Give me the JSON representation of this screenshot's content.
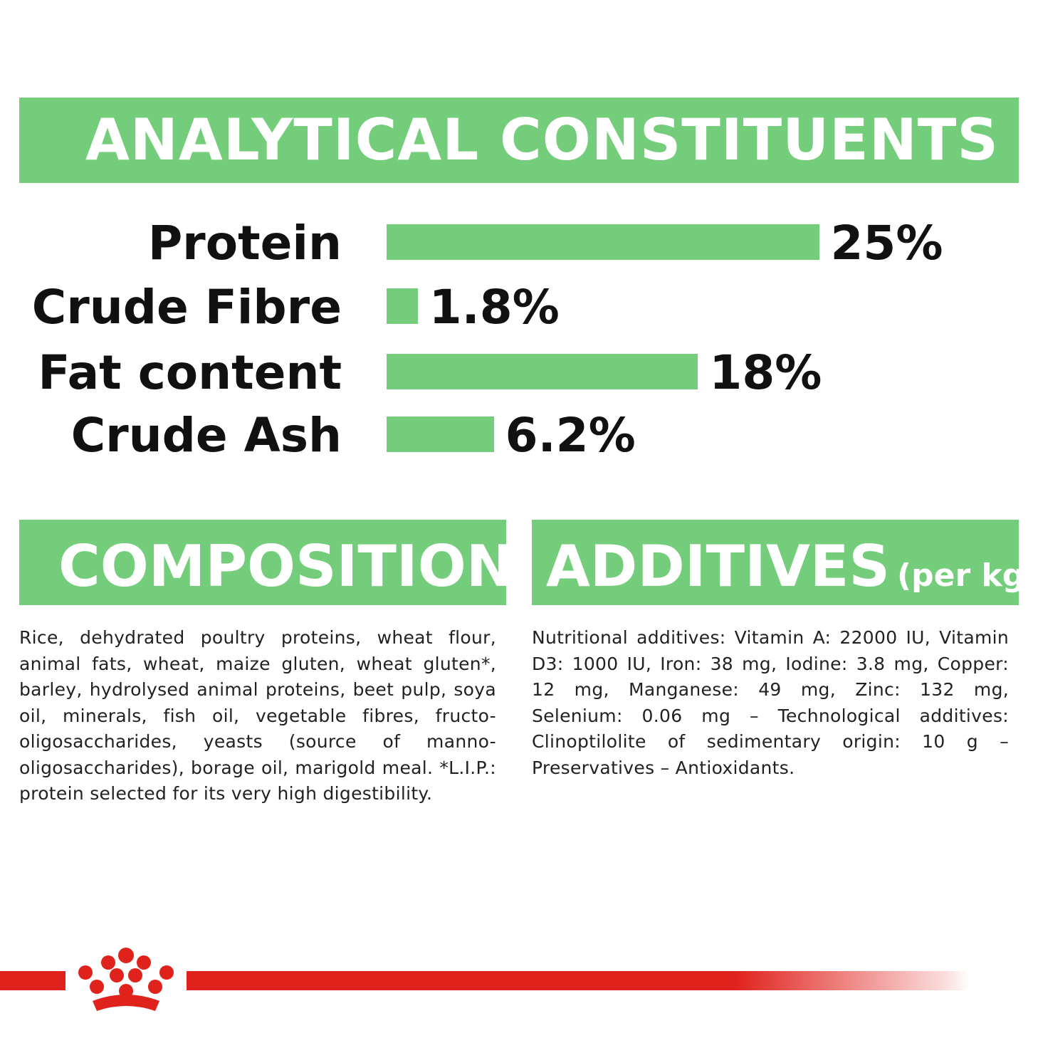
{
  "analytical": {
    "title": "ANALYTICAL CONSTITUENTS",
    "rows": [
      {
        "label": "Protein",
        "value": "25%",
        "percent": 25
      },
      {
        "label": "Crude Fibre",
        "value": "1.8%",
        "percent": 1.8
      },
      {
        "label": "Fat content",
        "value": "18%",
        "percent": 18
      },
      {
        "label": "Crude Ash",
        "value": "6.2%",
        "percent": 6.2
      }
    ]
  },
  "composition": {
    "title": "COMPOSITION",
    "text": "Rice, dehydrated poultry proteins, wheat flour, animal fats, wheat, maize gluten, wheat gluten*, barley, hydrolysed animal proteins, beet pulp, soya oil, minerals, fish oil, vegetable fibres, fructo-oligosaccharides, yeasts (source of manno-oligosaccharides), borage oil, marigold meal. *L.I.P.: protein selected for its very high digestibility."
  },
  "additives": {
    "title": "ADDITIVES",
    "title_suffix": "(per kg)",
    "text": "Nutritional additives: Vitamin A: 22000 IU, Vitamin D3: 1000 IU, Iron: 38 mg, Iodine: 3.8 mg, Copper: 12 mg, Manganese: 49 mg, Zinc: 132 mg, Selenium: 0.06 mg – Technological additives: Clinoptilolite of sedimentary origin: 10 g – Preservatives – Antioxidants."
  },
  "footer": {
    "logo": "crown-icon",
    "color": "#e0221d"
  },
  "colors": {
    "accent": "#74cd7b",
    "brand_red": "#e0221d"
  }
}
